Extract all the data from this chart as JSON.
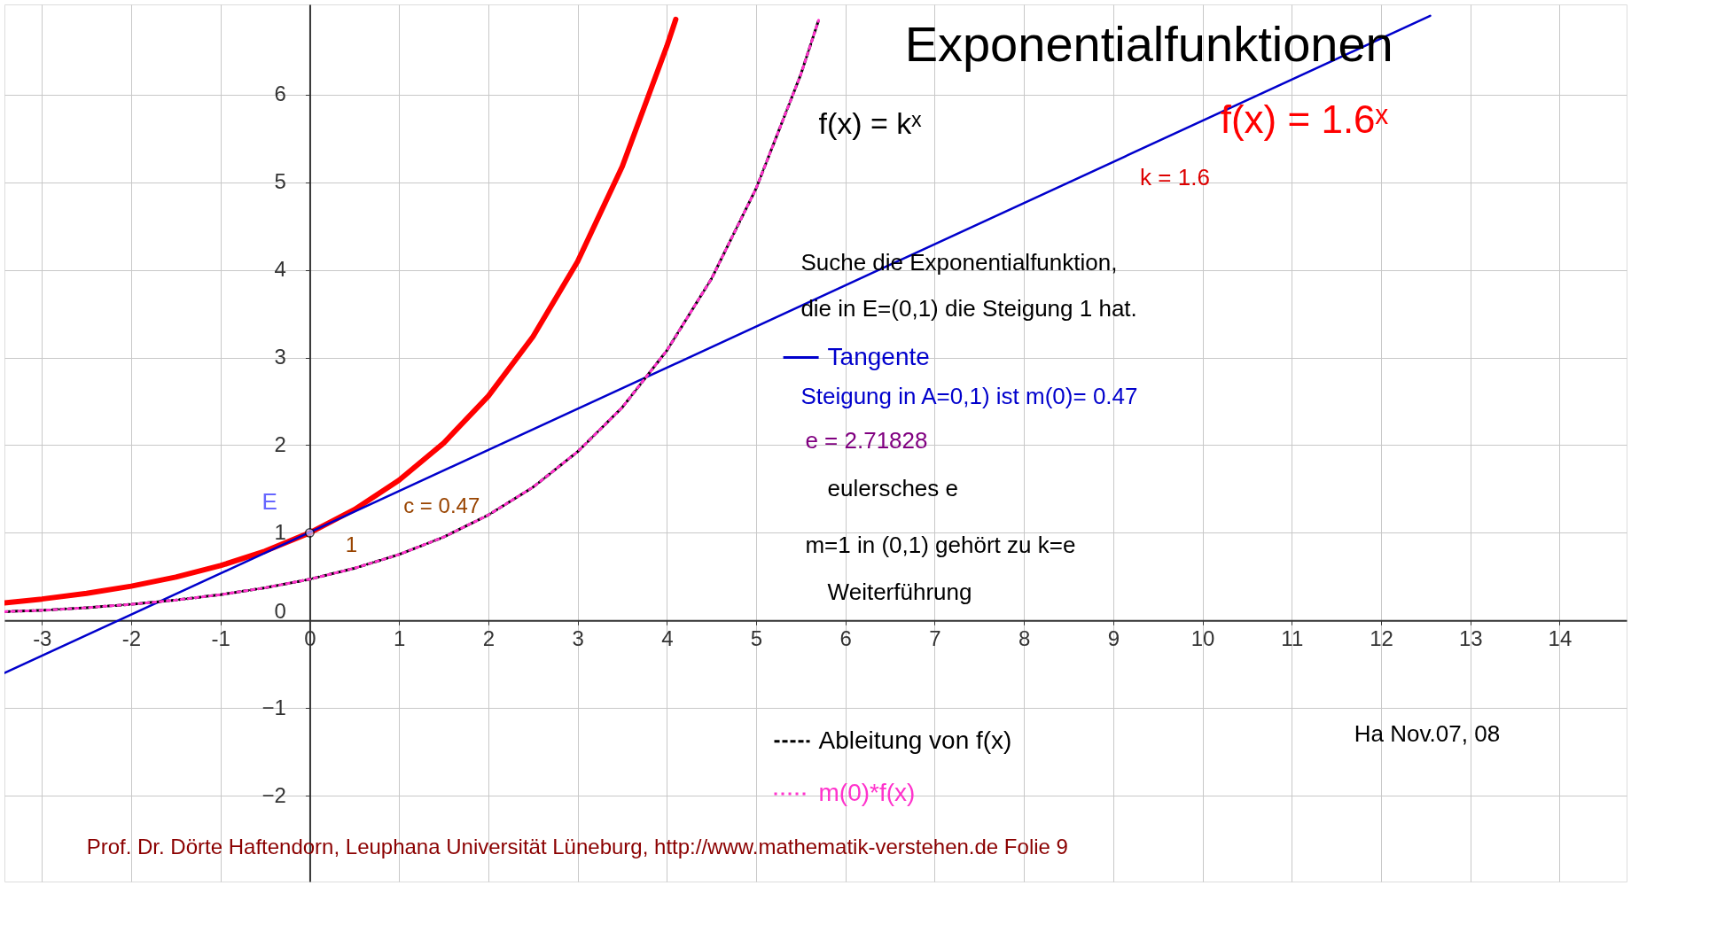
{
  "chart_data": {
    "type": "line",
    "title": "Exponentialfunktionen",
    "xlim": [
      -3.42,
      14.75
    ],
    "ylim": [
      -2.98,
      7.03
    ],
    "xticks": [
      {
        "value": -3,
        "label": "-3"
      },
      {
        "value": -2,
        "label": "-2"
      },
      {
        "value": -1,
        "label": "-1"
      },
      {
        "value": 0,
        "label": "0"
      },
      1,
      2,
      3,
      4,
      5,
      6,
      7,
      8,
      9,
      10,
      11,
      12,
      13,
      14
    ],
    "yticks": [
      {
        "value": -2,
        "label": "−2"
      },
      {
        "value": -1,
        "label": "−1"
      },
      0,
      1,
      2,
      3,
      4,
      5,
      6
    ],
    "grid": true,
    "legend": "right",
    "series": [
      {
        "name": "f(x) = 1.6ˣ",
        "color": "#ff0000",
        "line_style": "solid",
        "x": [
          -3.42,
          -3,
          -2.5,
          -2,
          -1.5,
          -1,
          -0.5,
          0,
          0.5,
          1,
          1.5,
          2,
          2.5,
          3,
          3.5,
          4,
          4.1
        ],
        "values": [
          0.2,
          0.244,
          0.309,
          0.391,
          0.494,
          0.625,
          0.791,
          1,
          1.265,
          1.6,
          2.024,
          2.56,
          3.238,
          4.096,
          5.18,
          6.554,
          6.86
        ]
      },
      {
        "name": "Tangente",
        "color": "#0000cc",
        "line_style": "solid",
        "x": [
          -3.42,
          12.55
        ],
        "values": [
          -0.6,
          6.9
        ]
      },
      {
        "name": "Ableitung von f(x)",
        "color": "#000000",
        "line_style": "dashed",
        "x": [
          -3.42,
          -3,
          -2.5,
          -2,
          -1.5,
          -1,
          -0.5,
          0,
          0.5,
          1,
          1.5,
          2,
          2.5,
          3,
          3.5,
          4,
          4.5,
          5,
          5.5,
          5.7
        ],
        "values": [
          0.1,
          0.115,
          0.145,
          0.184,
          0.232,
          0.294,
          0.372,
          0.47,
          0.595,
          0.752,
          0.951,
          1.203,
          1.52,
          1.925,
          2.43,
          3.08,
          3.9,
          4.93,
          6.23,
          6.85
        ]
      },
      {
        "name": "m(0)*f(x)",
        "color": "#ff33cc",
        "line_style": "dotted",
        "x": [
          -3.42,
          -3,
          -2.5,
          -2,
          -1.5,
          -1,
          -0.5,
          0,
          0.5,
          1,
          1.5,
          2,
          2.5,
          3,
          3.5,
          4,
          4.5,
          5,
          5.5,
          5.7
        ],
        "values": [
          0.1,
          0.115,
          0.145,
          0.184,
          0.232,
          0.294,
          0.372,
          0.47,
          0.595,
          0.752,
          0.951,
          1.203,
          1.52,
          1.925,
          2.43,
          3.08,
          3.9,
          4.93,
          6.23,
          6.85
        ]
      }
    ],
    "annotations": [
      "f(x) = kˣ",
      "k = 1.6",
      "Suche die Exponentialfunktion,",
      "die in E=(0,1) die Steigung 1 hat.",
      "Steigung in A=0,1) ist  m(0)= 0.47",
      "e = 2.71828",
      "eulersches e",
      "m=1 in (0,1) gehört zu k=e",
      "Weiterführung",
      "Ha Nov.07, 08",
      "Prof. Dr. Dörte Haftendorn, Leuphana Universität Lüneburg,  http://www.mathematik-verstehen.de     Folie 9",
      "c = 0.47",
      "1",
      {
        "text": "E",
        "x": 0,
        "y": 1
      }
    ]
  }
}
